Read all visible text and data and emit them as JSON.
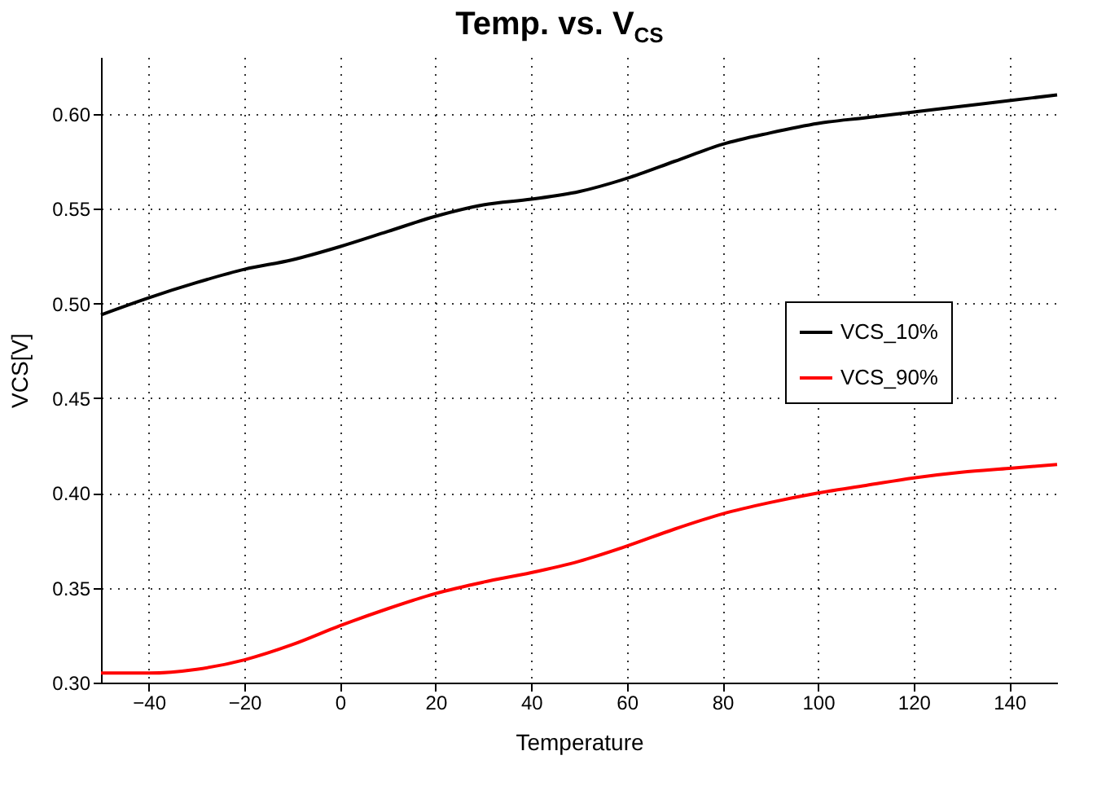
{
  "chart_data": {
    "type": "line",
    "title": "Temp. vs. V$_{CS}$",
    "xlabel": "Temperature",
    "ylabel": "VCS[V]",
    "x": [
      -50,
      -40,
      -30,
      -20,
      -10,
      0,
      10,
      20,
      30,
      40,
      50,
      60,
      70,
      80,
      90,
      100,
      110,
      120,
      130,
      140,
      150
    ],
    "series": [
      {
        "name": "VCS_10%",
        "color": "#000000",
        "values": [
          0.494,
          0.503,
          0.511,
          0.518,
          0.523,
          0.53,
          0.538,
          0.546,
          0.552,
          0.555,
          0.559,
          0.566,
          0.575,
          0.584,
          0.59,
          0.595,
          0.598,
          0.601,
          0.604,
          0.607,
          0.61
        ]
      },
      {
        "name": "VCS_90%",
        "color": "#ff0000",
        "values": [
          0.305,
          0.305,
          0.307,
          0.312,
          0.32,
          0.33,
          0.339,
          0.347,
          0.353,
          0.358,
          0.364,
          0.372,
          0.381,
          0.389,
          0.395,
          0.4,
          0.404,
          0.408,
          0.411,
          0.413,
          0.415
        ]
      }
    ],
    "xlim": [
      -50,
      150
    ],
    "xticks": [
      -40,
      -20,
      0,
      20,
      40,
      60,
      80,
      100,
      120,
      140
    ],
    "ylim": [
      0.3,
      0.63
    ],
    "yticks": [
      {
        "value": 0.3,
        "label": "0.30"
      },
      {
        "value": 0.35,
        "label": "0.35"
      },
      {
        "value": 0.4,
        "label": "0.40"
      },
      {
        "value": 0.45,
        "label": "0.45"
      },
      {
        "value": 0.5,
        "label": "0.50"
      },
      {
        "value": 0.55,
        "label": "0.55"
      },
      {
        "value": 0.6,
        "label": "0.60"
      }
    ],
    "grid": true,
    "legend": "right",
    "marker": "none",
    "line_style": "solid"
  }
}
